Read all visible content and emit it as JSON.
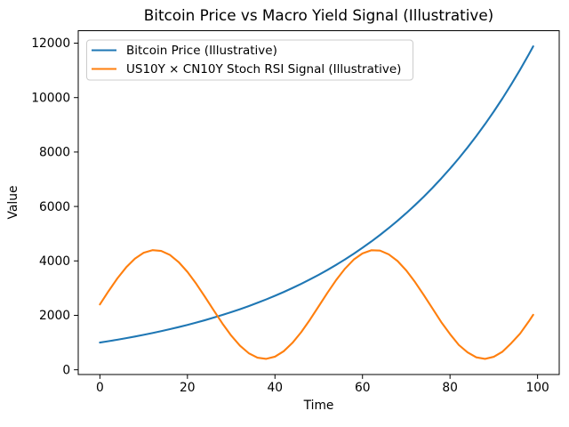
{
  "chart_data": {
    "type": "line",
    "title": "Bitcoin Price vs Macro Yield Signal (Illustrative)",
    "xlabel": "Time",
    "ylabel": "Value",
    "xlim": [
      -4.95,
      104.95
    ],
    "ylim": [
      -174,
      12458
    ],
    "x_ticks": [
      0,
      20,
      40,
      60,
      80,
      100
    ],
    "y_ticks": [
      0,
      2000,
      4000,
      6000,
      8000,
      10000,
      12000
    ],
    "grid": false,
    "legend_position": "upper left",
    "background_color": "#ffffff",
    "text_color": "#000000",
    "spine_color": "#000000",
    "legend_border_color": "#cccccc",
    "x": [
      0,
      2,
      4,
      6,
      8,
      10,
      12,
      14,
      16,
      18,
      20,
      22,
      24,
      26,
      28,
      30,
      32,
      34,
      36,
      38,
      40,
      42,
      44,
      46,
      48,
      50,
      52,
      54,
      56,
      58,
      60,
      62,
      64,
      66,
      68,
      70,
      72,
      74,
      76,
      78,
      80,
      82,
      84,
      86,
      88,
      90,
      92,
      94,
      96,
      98,
      99
    ],
    "series": [
      {
        "name": "Bitcoin Price (Illustrative)",
        "color": "#1f77b4",
        "values": [
          1000,
          1051,
          1105,
          1162,
          1221,
          1284,
          1350,
          1419,
          1492,
          1568,
          1649,
          1733,
          1822,
          1916,
          2014,
          2117,
          2226,
          2340,
          2460,
          2586,
          2718,
          2858,
          3004,
          3158,
          3320,
          3490,
          3669,
          3857,
          4055,
          4263,
          4482,
          4711,
          4953,
          5207,
          5474,
          5755,
          6050,
          6360,
          6686,
          7029,
          7389,
          7768,
          8166,
          8585,
          9025,
          9488,
          9974,
          10486,
          11023,
          11588,
          11883
        ]
      },
      {
        "name": "US10Y × CN10Y Stoch RSI Signal (Illustrative)",
        "color": "#ff7f0e",
        "values": [
          2400,
          2895,
          3359,
          3763,
          4083,
          4298,
          4395,
          4368,
          4219,
          3956,
          3597,
          3163,
          2682,
          2184,
          1698,
          1257,
          886,
          610,
          445,
          401,
          482,
          682,
          989,
          1383,
          1841,
          2334,
          2830,
          3301,
          3714,
          4049,
          4276,
          4390,
          4379,
          4240,
          3997,
          3650,
          3224,
          2748,
          2250,
          1751,
          1312,
          913,
          641,
          458,
          400,
          477,
          666,
          979,
          1327,
          1778,
          2020
        ]
      }
    ]
  }
}
